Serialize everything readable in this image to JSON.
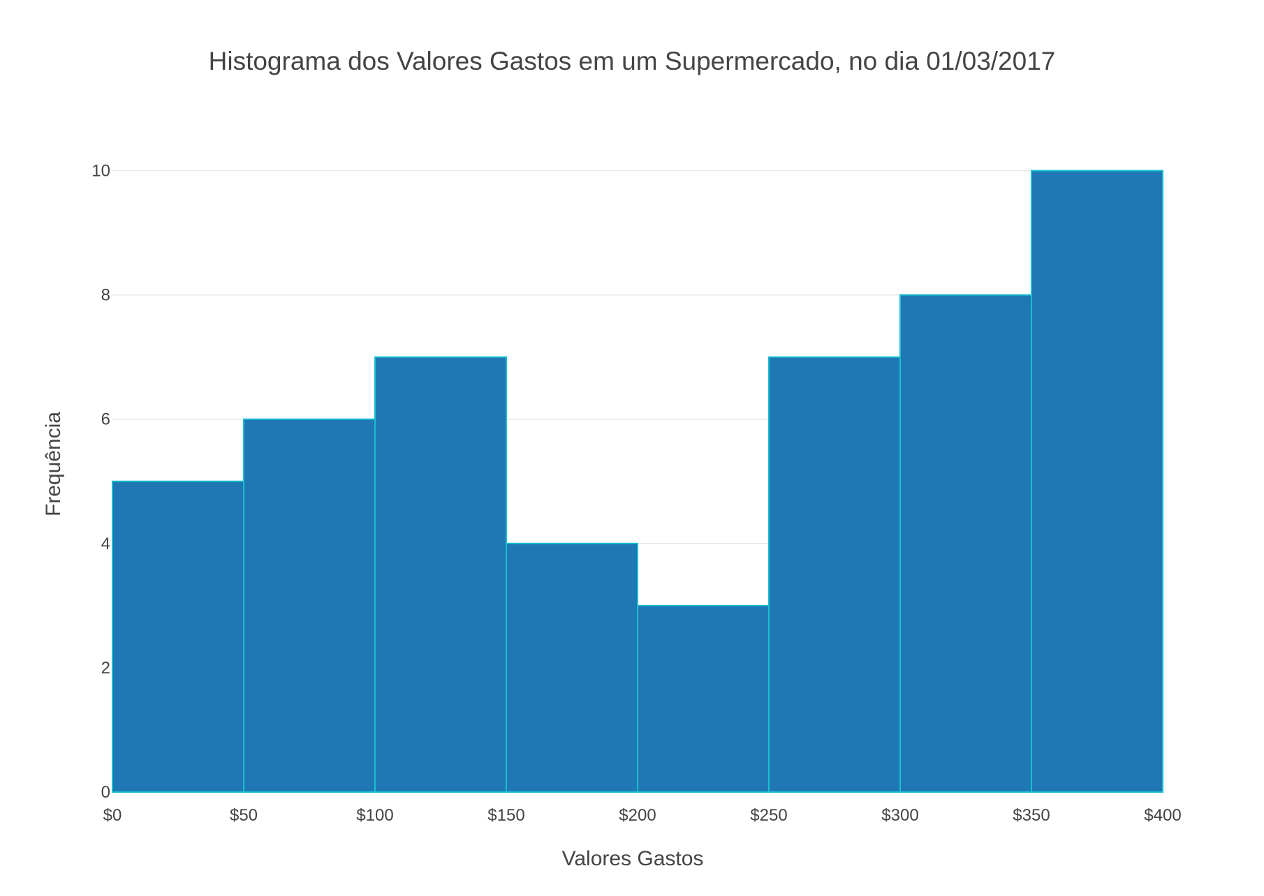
{
  "chart_data": {
    "type": "bar",
    "title": "Histograma dos Valores Gastos em um Supermercado, no dia 01/03/2017",
    "xlabel": "Valores Gastos",
    "ylabel": "Frequência",
    "bins": [
      {
        "start": 0,
        "end": 50,
        "count": 5
      },
      {
        "start": 50,
        "end": 100,
        "count": 6
      },
      {
        "start": 100,
        "end": 150,
        "count": 7
      },
      {
        "start": 150,
        "end": 200,
        "count": 4
      },
      {
        "start": 200,
        "end": 250,
        "count": 3
      },
      {
        "start": 250,
        "end": 300,
        "count": 7
      },
      {
        "start": 300,
        "end": 350,
        "count": 8
      },
      {
        "start": 350,
        "end": 400,
        "count": 10
      }
    ],
    "xlim": [
      0,
      400
    ],
    "ylim": [
      0,
      10.5
    ],
    "x_ticks": [
      0,
      50,
      100,
      150,
      200,
      250,
      300,
      350,
      400
    ],
    "x_tick_labels": [
      "$0",
      "$50",
      "$100",
      "$150",
      "$200",
      "$250",
      "$300",
      "$350",
      "$400"
    ],
    "y_ticks": [
      0,
      2,
      4,
      6,
      8,
      10
    ],
    "y_tick_labels": [
      "0",
      "2",
      "4",
      "6",
      "8",
      "10"
    ],
    "grid": "horizontal",
    "legend": "none",
    "colors": {
      "bar_fill": "#1f77b4",
      "bar_edge": "#17becf",
      "grid": "#e6e6e6",
      "text": "#444444"
    }
  }
}
